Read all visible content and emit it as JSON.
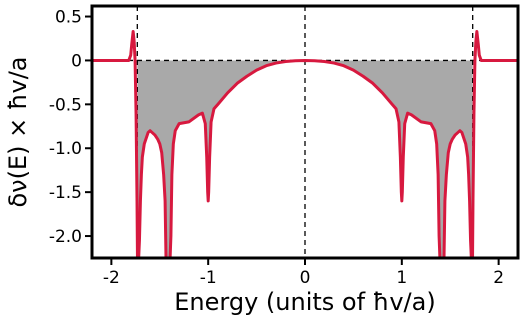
{
  "chart_data": {
    "type": "area",
    "title": "",
    "xlabel": "Energy (units of ħv/a)",
    "ylabel": "δν(E) × ħv/a",
    "xlim": [
      -2.2,
      2.2
    ],
    "ylim": [
      -2.25,
      0.62
    ],
    "xticks": [
      -2,
      -1,
      0,
      1,
      2
    ],
    "xtick_labels": [
      "-2",
      "-1",
      "0",
      "1",
      "2"
    ],
    "yticks": [
      0.5,
      0,
      -0.5,
      -1.0,
      -1.5,
      -2.0
    ],
    "ytick_labels": [
      "0.5",
      "0",
      "-0.5",
      "-1.0",
      "-1.5",
      "-2.0"
    ],
    "grid": false,
    "reference_lines": {
      "vertical_dashed_x": [
        -1.732,
        0,
        1.732
      ],
      "horizontal_dashed_y": 0
    },
    "shaded_region": {
      "x_from": -1.732,
      "x_to": 1.732,
      "between": "curve and y=0",
      "color": "#a9a9a9"
    },
    "series": [
      {
        "color": "#d7193f",
        "x": [
          -2.2,
          -1.9,
          -1.82,
          -1.8,
          -1.79,
          -1.775,
          -1.765,
          -1.755,
          -1.745,
          -1.735,
          -1.73,
          -1.72,
          -1.71,
          -1.7,
          -1.69,
          -1.68,
          -1.66,
          -1.62,
          -1.6,
          -1.58,
          -1.55,
          -1.52,
          -1.5,
          -1.48,
          -1.46,
          -1.445,
          -1.435,
          -1.425,
          -1.415,
          -1.405,
          -1.395,
          -1.385,
          -1.375,
          -1.36,
          -1.34,
          -1.3,
          -1.2,
          -1.1,
          -1.06,
          -1.03,
          -1.015,
          -1.005,
          -1.0,
          -0.995,
          -0.985,
          -0.97,
          -0.94,
          -0.9,
          -0.8,
          -0.7,
          -0.6,
          -0.5,
          -0.4,
          -0.3,
          -0.2,
          -0.1,
          0,
          0.1,
          0.2,
          0.3,
          0.4,
          0.5,
          0.6,
          0.7,
          0.8,
          0.9,
          0.94,
          0.97,
          0.985,
          0.995,
          1.0,
          1.005,
          1.015,
          1.03,
          1.06,
          1.1,
          1.2,
          1.3,
          1.34,
          1.36,
          1.375,
          1.385,
          1.395,
          1.405,
          1.415,
          1.425,
          1.435,
          1.445,
          1.46,
          1.48,
          1.5,
          1.52,
          1.55,
          1.58,
          1.6,
          1.62,
          1.66,
          1.68,
          1.69,
          1.7,
          1.71,
          1.72,
          1.73,
          1.735,
          1.745,
          1.755,
          1.765,
          1.775,
          1.79,
          1.8,
          1.82,
          1.9,
          2.2
        ],
        "y": [
          0,
          0,
          0.0,
          0.06,
          0.18,
          0.33,
          0.22,
          0.0,
          -0.6,
          -1.6,
          -2.3,
          -2.3,
          -2.05,
          -1.6,
          -1.3,
          -1.1,
          -0.95,
          -0.82,
          -0.8,
          -0.82,
          -0.85,
          -0.9,
          -0.95,
          -1.05,
          -1.3,
          -1.6,
          -2.3,
          -2.3,
          -2.3,
          -2.3,
          -2.3,
          -2.0,
          -1.3,
          -0.95,
          -0.8,
          -0.72,
          -0.7,
          -0.62,
          -0.6,
          -0.72,
          -1.1,
          -1.5,
          -1.6,
          -1.5,
          -1.1,
          -0.7,
          -0.55,
          -0.5,
          -0.37,
          -0.26,
          -0.18,
          -0.11,
          -0.06,
          -0.03,
          -0.012,
          -0.003,
          0,
          -0.003,
          -0.012,
          -0.03,
          -0.06,
          -0.11,
          -0.18,
          -0.26,
          -0.37,
          -0.5,
          -0.55,
          -0.7,
          -1.1,
          -1.5,
          -1.6,
          -1.5,
          -1.1,
          -0.72,
          -0.6,
          -0.62,
          -0.7,
          -0.72,
          -0.8,
          -0.95,
          -1.3,
          -2.0,
          -2.3,
          -2.3,
          -2.3,
          -2.3,
          -2.3,
          -1.6,
          -1.3,
          -1.05,
          -0.95,
          -0.9,
          -0.85,
          -0.82,
          -0.8,
          -0.82,
          -0.95,
          -1.1,
          -1.3,
          -1.6,
          -2.05,
          -2.3,
          -2.3,
          -1.6,
          -0.6,
          0.0,
          0.22,
          0.33,
          0.18,
          0.06,
          0.0,
          0,
          0
        ]
      }
    ]
  }
}
